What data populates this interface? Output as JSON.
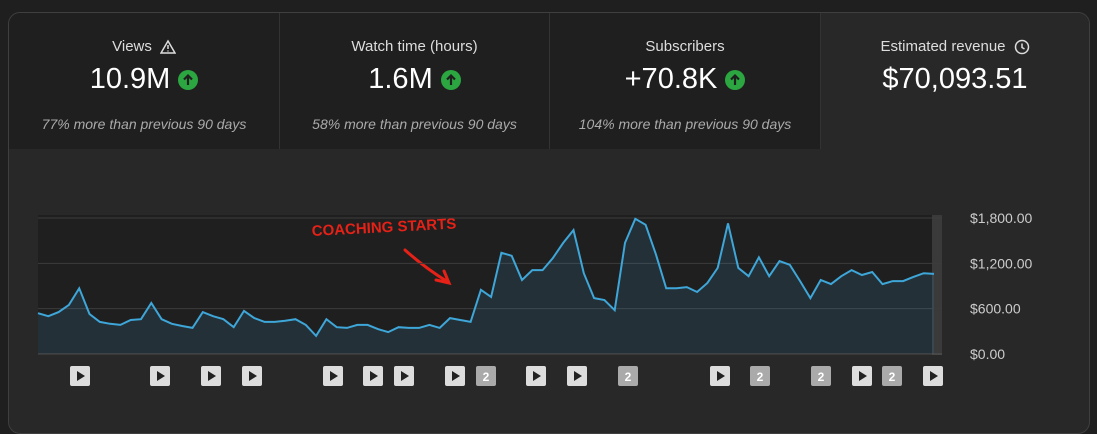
{
  "cards": [
    {
      "title": "Views",
      "value": "10.9M",
      "note": "77% more than previous 90 days"
    },
    {
      "title": "Watch time (hours)",
      "value": "1.6M",
      "note": "58% more than previous 90 days"
    },
    {
      "title": "Subscribers",
      "value": "+70.8K",
      "note": "104% more than previous 90 days"
    },
    {
      "title": "Estimated revenue",
      "value": "$70,093.51"
    }
  ],
  "chart_data": {
    "type": "line",
    "color": "#3ea6d8",
    "grid": true,
    "annotation": "COACHING STARTS",
    "ylim": [
      0,
      1800
    ],
    "yticks": [
      {
        "value": 0,
        "label": "$0.00"
      },
      {
        "value": 600,
        "label": "$600.00"
      },
      {
        "value": 1200,
        "label": "$1,200.00"
      },
      {
        "value": 1800,
        "label": "$1,800.00"
      }
    ],
    "values": [
      540,
      500,
      555,
      650,
      870,
      530,
      425,
      400,
      385,
      450,
      460,
      675,
      460,
      400,
      370,
      345,
      555,
      500,
      460,
      355,
      570,
      475,
      425,
      425,
      440,
      460,
      385,
      240,
      460,
      355,
      345,
      385,
      385,
      330,
      290,
      355,
      345,
      345,
      385,
      345,
      475,
      450,
      425,
      850,
      755,
      1340,
      1300,
      980,
      1110,
      1110,
      1270,
      1470,
      1640,
      1070,
      740,
      715,
      580,
      1470,
      1790,
      1710,
      1320,
      870,
      870,
      885,
      820,
      940,
      1140,
      1730,
      1140,
      1030,
      1280,
      1030,
      1230,
      1180,
      965,
      740,
      980,
      925,
      1030,
      1110,
      1045,
      1085,
      925,
      965,
      965,
      1020,
      1070,
      1060
    ],
    "markers": [
      null,
      null,
      null,
      null,
      null,
      null,
      null,
      null,
      "2",
      null,
      null,
      "2",
      null,
      "2",
      "2",
      null,
      "2",
      null
    ]
  }
}
